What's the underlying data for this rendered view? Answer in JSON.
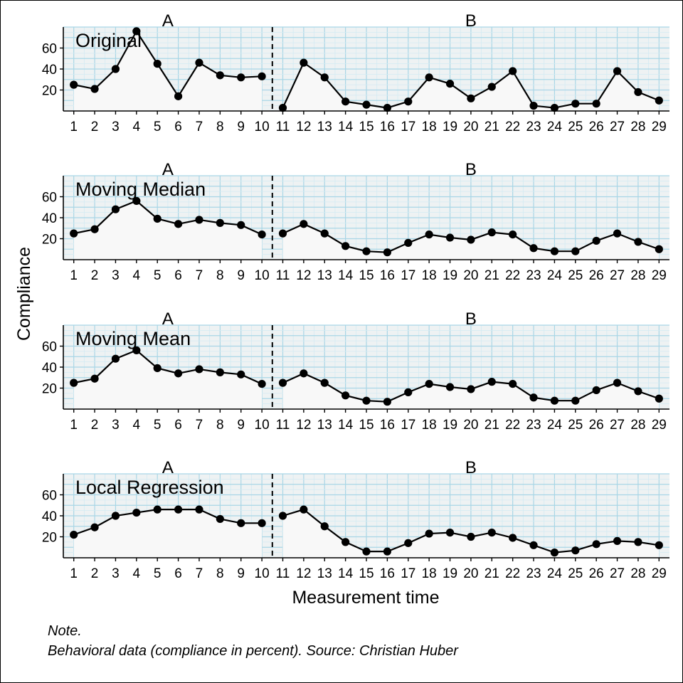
{
  "figure": {
    "ylabel": "Compliance",
    "xlabel": "Measurement time",
    "note_title": "Note.",
    "note_text": "Behavioral data (compliance in percent). Source: Christian Huber",
    "colors": {
      "panel_bg": "#eef2f3",
      "grid_major": "#a9d6e6",
      "grid_minor": "#d4ebf3",
      "area_fill": "#f8f8f8",
      "line": "#000000"
    }
  },
  "chart_data": [
    {
      "type": "line",
      "title": "Original",
      "phases": [
        {
          "label": "A",
          "start": 1,
          "end": 10
        },
        {
          "label": "B",
          "start": 11,
          "end": 29
        }
      ],
      "phase_change_after": 10,
      "x": [
        1,
        2,
        3,
        4,
        5,
        6,
        7,
        8,
        9,
        10,
        11,
        12,
        13,
        14,
        15,
        16,
        17,
        18,
        19,
        20,
        21,
        22,
        23,
        24,
        25,
        26,
        27,
        28,
        29
      ],
      "values": [
        25,
        21,
        40,
        76,
        45,
        14,
        46,
        34,
        32,
        33,
        3,
        46,
        32,
        9,
        6,
        3,
        9,
        32,
        26,
        12,
        23,
        38,
        5,
        3,
        7,
        7,
        38,
        18,
        10
      ],
      "ylim": [
        0,
        80
      ],
      "yticks": [
        20,
        40,
        60
      ]
    },
    {
      "type": "line",
      "title": "Moving Median",
      "phases": [
        {
          "label": "A",
          "start": 1,
          "end": 10
        },
        {
          "label": "B",
          "start": 11,
          "end": 29
        }
      ],
      "phase_change_after": 10,
      "x": [
        1,
        2,
        3,
        4,
        5,
        6,
        7,
        8,
        9,
        10,
        11,
        12,
        13,
        14,
        15,
        16,
        17,
        18,
        19,
        20,
        21,
        22,
        23,
        24,
        25,
        26,
        27,
        28,
        29
      ],
      "values": [
        25,
        29,
        48,
        56,
        39,
        34,
        38,
        35,
        33,
        24,
        25,
        34,
        25,
        13,
        8,
        7,
        16,
        24,
        21,
        19,
        26,
        24,
        11,
        8,
        8,
        18,
        25,
        17,
        10
      ],
      "ylim": [
        0,
        80
      ],
      "yticks": [
        20,
        40,
        60
      ]
    },
    {
      "type": "line",
      "title": "Moving Mean",
      "phases": [
        {
          "label": "A",
          "start": 1,
          "end": 10
        },
        {
          "label": "B",
          "start": 11,
          "end": 29
        }
      ],
      "phase_change_after": 10,
      "x": [
        1,
        2,
        3,
        4,
        5,
        6,
        7,
        8,
        9,
        10,
        11,
        12,
        13,
        14,
        15,
        16,
        17,
        18,
        19,
        20,
        21,
        22,
        23,
        24,
        25,
        26,
        27,
        28,
        29
      ],
      "values": [
        25,
        29,
        48,
        56,
        39,
        34,
        38,
        35,
        33,
        24,
        25,
        34,
        25,
        13,
        8,
        7,
        16,
        24,
        21,
        19,
        26,
        24,
        11,
        8,
        8,
        18,
        25,
        17,
        10
      ],
      "ylim": [
        0,
        80
      ],
      "yticks": [
        20,
        40,
        60
      ]
    },
    {
      "type": "line",
      "title": "Local Regression",
      "phases": [
        {
          "label": "A",
          "start": 1,
          "end": 10
        },
        {
          "label": "B",
          "start": 11,
          "end": 29
        }
      ],
      "phase_change_after": 10,
      "x": [
        1,
        2,
        3,
        4,
        5,
        6,
        7,
        8,
        9,
        10,
        11,
        12,
        13,
        14,
        15,
        16,
        17,
        18,
        19,
        20,
        21,
        22,
        23,
        24,
        25,
        26,
        27,
        28,
        29
      ],
      "values": [
        22,
        29,
        40,
        43,
        46,
        46,
        46,
        37,
        33,
        33,
        40,
        46,
        30,
        15,
        6,
        6,
        14,
        23,
        24,
        20,
        24,
        19,
        12,
        5,
        7,
        13,
        16,
        15,
        12
      ],
      "ylim": [
        0,
        80
      ],
      "yticks": [
        20,
        40,
        60
      ]
    }
  ]
}
